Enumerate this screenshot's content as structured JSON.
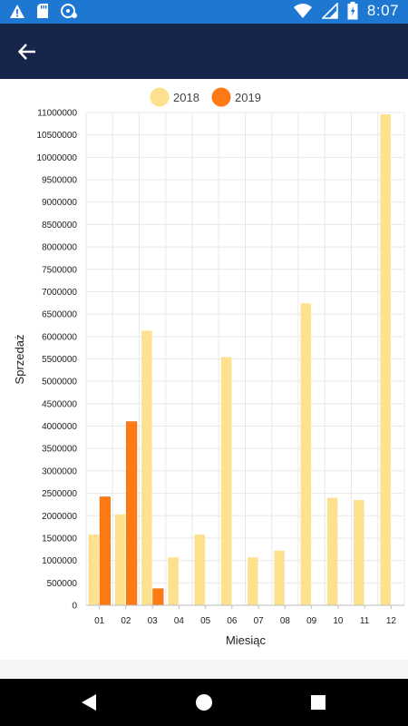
{
  "status_bar": {
    "time": "8:07",
    "left_icons": [
      "warning-icon",
      "sd-card-icon",
      "sync-icon"
    ],
    "right_icons": [
      "wifi-icon",
      "signal-icon",
      "battery-icon"
    ],
    "color": "#1e78d2"
  },
  "app_bar": {
    "back_icon": "arrow-left-icon",
    "color": "#17254a"
  },
  "chart_data": {
    "type": "bar",
    "categories": [
      "01",
      "02",
      "03",
      "04",
      "05",
      "06",
      "07",
      "08",
      "09",
      "10",
      "11",
      "12"
    ],
    "series": [
      {
        "name": "2018",
        "color": "#fde18f",
        "values": [
          1580000,
          2030000,
          6130000,
          1070000,
          1580000,
          5540000,
          1070000,
          1220000,
          6740000,
          2400000,
          2350000,
          10960000
        ]
      },
      {
        "name": "2019",
        "color": "#ff7a14",
        "values": [
          2420000,
          4100000,
          370000,
          null,
          null,
          null,
          null,
          null,
          null,
          null,
          null,
          null
        ]
      }
    ],
    "yticks": [
      0,
      500000,
      1000000,
      1500000,
      2000000,
      2500000,
      3000000,
      3500000,
      4000000,
      4500000,
      5000000,
      5500000,
      6000000,
      6500000,
      7000000,
      7500000,
      8000000,
      8500000,
      9000000,
      9500000,
      10000000,
      10500000,
      11000000
    ],
    "ylim": [
      0,
      11000000
    ],
    "xlabel": "Miesiąc",
    "ylabel": "Sprzedaż",
    "legend_position": "top-center",
    "grid": true
  },
  "nav_bar": {
    "icons": [
      "back-triangle-icon",
      "home-circle-icon",
      "recents-square-icon"
    ]
  }
}
